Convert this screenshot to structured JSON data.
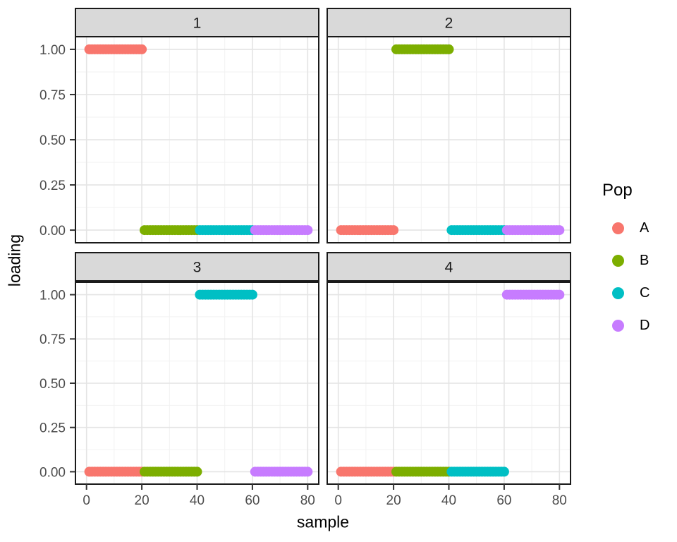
{
  "chart_data": {
    "type": "scatter",
    "title": "",
    "xlabel": "sample",
    "ylabel": "loading",
    "x_ticks": [
      0,
      20,
      40,
      60,
      80
    ],
    "x_minor_ticks": [
      10,
      30,
      50,
      70
    ],
    "y_ticks": [
      1.0,
      0.75,
      0.5,
      0.25,
      0.0
    ],
    "y_tick_labels": [
      "1.00",
      "0.75",
      "0.50",
      "0.25",
      "0.00"
    ],
    "y_minor_ticks": [
      0.125,
      0.375,
      0.625,
      0.875
    ],
    "xlim": [
      -4,
      84
    ],
    "ylim": [
      -0.07,
      1.07
    ],
    "grid": "major and minor, light gray on white panel",
    "facet_layout": "2x2",
    "facets": [
      {
        "label": "1",
        "series": [
          {
            "pop": "A",
            "sample_start": 1,
            "sample_end": 20,
            "loading": 1.0
          },
          {
            "pop": "B",
            "sample_start": 21,
            "sample_end": 40,
            "loading": 0.0
          },
          {
            "pop": "C",
            "sample_start": 41,
            "sample_end": 60,
            "loading": 0.0
          },
          {
            "pop": "D",
            "sample_start": 61,
            "sample_end": 80,
            "loading": 0.0
          }
        ]
      },
      {
        "label": "2",
        "series": [
          {
            "pop": "A",
            "sample_start": 1,
            "sample_end": 20,
            "loading": 0.0
          },
          {
            "pop": "B",
            "sample_start": 21,
            "sample_end": 40,
            "loading": 1.0
          },
          {
            "pop": "C",
            "sample_start": 41,
            "sample_end": 60,
            "loading": 0.0
          },
          {
            "pop": "D",
            "sample_start": 61,
            "sample_end": 80,
            "loading": 0.0
          }
        ]
      },
      {
        "label": "3",
        "series": [
          {
            "pop": "A",
            "sample_start": 1,
            "sample_end": 20,
            "loading": 0.0
          },
          {
            "pop": "B",
            "sample_start": 21,
            "sample_end": 40,
            "loading": 0.0
          },
          {
            "pop": "C",
            "sample_start": 41,
            "sample_end": 60,
            "loading": 1.0
          },
          {
            "pop": "D",
            "sample_start": 61,
            "sample_end": 80,
            "loading": 0.0
          }
        ]
      },
      {
        "label": "4",
        "series": [
          {
            "pop": "A",
            "sample_start": 1,
            "sample_end": 20,
            "loading": 0.0
          },
          {
            "pop": "B",
            "sample_start": 21,
            "sample_end": 40,
            "loading": 0.0
          },
          {
            "pop": "C",
            "sample_start": 41,
            "sample_end": 60,
            "loading": 0.0
          },
          {
            "pop": "D",
            "sample_start": 61,
            "sample_end": 80,
            "loading": 1.0
          }
        ]
      }
    ],
    "legend": {
      "title": "Pop",
      "position": "right",
      "entries": [
        {
          "label": "A",
          "color": "#F8766D"
        },
        {
          "label": "B",
          "color": "#7CAE00"
        },
        {
          "label": "C",
          "color": "#00BFC4"
        },
        {
          "label": "D",
          "color": "#C77CFF"
        }
      ]
    }
  }
}
